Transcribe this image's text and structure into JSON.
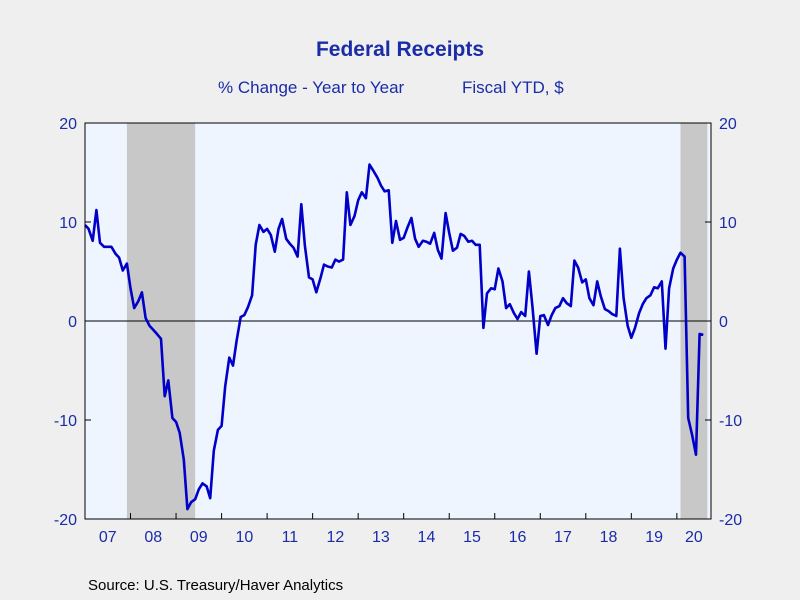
{
  "chart_data": {
    "type": "line",
    "title": "Federal Receipts",
    "subtitles": [
      "% Change - Year to Year",
      "Fiscal YTD, $"
    ],
    "source": "Source:  U.S. Treasury/Haver Analytics",
    "ylim": [
      -20,
      20
    ],
    "yticks": [
      -20,
      -10,
      0,
      10,
      20
    ],
    "xlim": [
      2007.0,
      2020.75
    ],
    "xticks": [
      {
        "label": "07",
        "year": 2007
      },
      {
        "label": "08",
        "year": 2008
      },
      {
        "label": "09",
        "year": 2009
      },
      {
        "label": "10",
        "year": 2010
      },
      {
        "label": "11",
        "year": 2011
      },
      {
        "label": "12",
        "year": 2012
      },
      {
        "label": "13",
        "year": 2013
      },
      {
        "label": "14",
        "year": 2014
      },
      {
        "label": "15",
        "year": 2015
      },
      {
        "label": "16",
        "year": 2016
      },
      {
        "label": "17",
        "year": 2017
      },
      {
        "label": "18",
        "year": 2018
      },
      {
        "label": "19",
        "year": 2019
      },
      {
        "label": "20",
        "year": 2020
      }
    ],
    "recessions": [
      [
        2007.92,
        2009.42
      ],
      [
        2020.08,
        2020.67
      ]
    ],
    "grid": false,
    "zero_line": true,
    "colors": {
      "line": "#0000c8",
      "recession": "#c8c8c8",
      "plot_bg": "#eef5ff",
      "text": "#1a2ca8"
    },
    "series": [
      {
        "x": [
          2007.0,
          2007.08,
          2007.17,
          2007.25,
          2007.33,
          2007.42,
          2007.5,
          2007.58,
          2007.67,
          2007.75,
          2007.83,
          2007.92,
          2008.0,
          2008.08,
          2008.17,
          2008.25,
          2008.33,
          2008.42,
          2008.5,
          2008.58,
          2008.67,
          2008.75,
          2008.83,
          2008.92,
          2009.0,
          2009.08,
          2009.17,
          2009.25,
          2009.33,
          2009.42,
          2009.5,
          2009.58,
          2009.67,
          2009.75,
          2009.83,
          2009.92,
          2010.0,
          2010.08,
          2010.17,
          2010.25,
          2010.33,
          2010.42,
          2010.5,
          2010.58,
          2010.67,
          2010.75,
          2010.83,
          2010.92,
          2011.0,
          2011.08,
          2011.17,
          2011.25,
          2011.33,
          2011.42,
          2011.5,
          2011.58,
          2011.67,
          2011.75,
          2011.83,
          2011.92,
          2012.0,
          2012.08,
          2012.17,
          2012.25,
          2012.33,
          2012.42,
          2012.5,
          2012.58,
          2012.67,
          2012.75,
          2012.83,
          2012.92,
          2013.0,
          2013.08,
          2013.17,
          2013.25,
          2013.33,
          2013.42,
          2013.5,
          2013.58,
          2013.67,
          2013.75,
          2013.83,
          2013.92,
          2014.0,
          2014.08,
          2014.17,
          2014.25,
          2014.33,
          2014.42,
          2014.5,
          2014.58,
          2014.67,
          2014.75,
          2014.83,
          2014.92,
          2015.0,
          2015.08,
          2015.17,
          2015.25,
          2015.33,
          2015.42,
          2015.5,
          2015.58,
          2015.67,
          2015.75,
          2015.83,
          2015.92,
          2016.0,
          2016.08,
          2016.17,
          2016.25,
          2016.33,
          2016.42,
          2016.5,
          2016.58,
          2016.67,
          2016.75,
          2016.83,
          2016.92,
          2017.0,
          2017.08,
          2017.17,
          2017.25,
          2017.33,
          2017.42,
          2017.5,
          2017.58,
          2017.67,
          2017.75,
          2017.83,
          2017.92,
          2018.0,
          2018.08,
          2018.17,
          2018.25,
          2018.33,
          2018.42,
          2018.5,
          2018.58,
          2018.67,
          2018.75,
          2018.83,
          2018.92,
          2019.0,
          2019.08,
          2019.17,
          2019.25,
          2019.33,
          2019.42,
          2019.5,
          2019.58,
          2019.67,
          2019.75,
          2019.83,
          2019.92,
          2020.0,
          2020.08,
          2020.17,
          2020.25,
          2020.33,
          2020.42,
          2020.5,
          2020.58
        ],
        "y": [
          9.7,
          9.3,
          8.1,
          11.2,
          7.9,
          7.5,
          7.5,
          7.5,
          6.8,
          6.4,
          5.1,
          5.8,
          3.3,
          1.3,
          2.0,
          2.9,
          0.3,
          -0.5,
          -0.9,
          -1.3,
          -1.8,
          -7.6,
          -6.0,
          -9.8,
          -10.2,
          -11.3,
          -14.0,
          -19.0,
          -18.3,
          -18.0,
          -17.0,
          -16.4,
          -16.7,
          -17.9,
          -13.1,
          -11.0,
          -10.6,
          -6.6,
          -3.7,
          -4.5,
          -2.0,
          0.4,
          0.6,
          1.4,
          2.6,
          7.7,
          9.7,
          9.0,
          9.3,
          8.7,
          7.0,
          9.3,
          10.3,
          8.3,
          7.8,
          7.4,
          6.5,
          11.8,
          7.6,
          4.4,
          4.2,
          2.9,
          4.3,
          5.7,
          5.5,
          5.4,
          6.2,
          6.0,
          6.2,
          13.0,
          9.7,
          10.6,
          12.2,
          13.0,
          12.4,
          15.8,
          15.2,
          14.5,
          13.7,
          13.1,
          13.2,
          7.9,
          10.1,
          8.2,
          8.4,
          9.4,
          10.4,
          8.3,
          7.5,
          8.1,
          8.0,
          7.8,
          8.9,
          7.2,
          6.3,
          10.9,
          8.9,
          7.1,
          7.4,
          8.8,
          8.6,
          8.0,
          8.1,
          7.7,
          7.7,
          -0.7,
          2.8,
          3.3,
          3.2,
          5.3,
          4.0,
          1.3,
          1.7,
          0.8,
          0.2,
          0.9,
          0.5,
          5.0,
          1.4,
          -3.3,
          0.5,
          0.6,
          -0.4,
          0.6,
          1.3,
          1.5,
          2.3,
          1.8,
          1.5,
          6.1,
          5.4,
          3.9,
          4.2,
          2.3,
          1.6,
          4.0,
          2.5,
          1.2,
          1.0,
          0.7,
          0.5,
          7.3,
          2.3,
          -0.5,
          -1.7,
          -0.7,
          0.8,
          1.7,
          2.3,
          2.6,
          3.4,
          3.3,
          4.0,
          -2.8,
          3.3,
          5.3,
          6.2,
          6.9,
          6.5,
          -9.8,
          -11.4,
          -13.5,
          -1.3,
          -1.4
        ]
      }
    ]
  }
}
